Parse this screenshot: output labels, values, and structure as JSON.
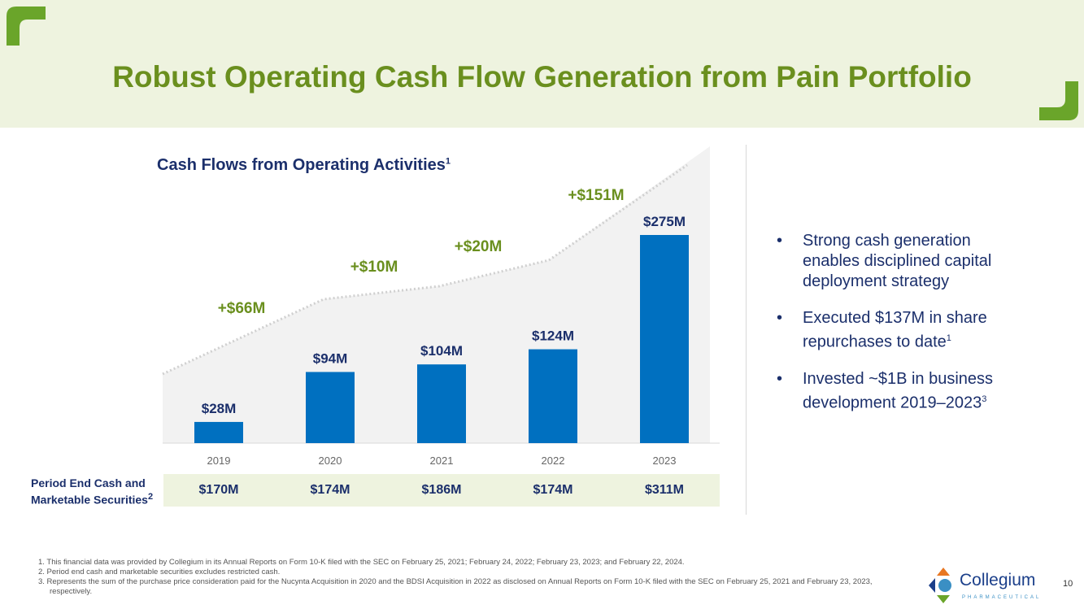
{
  "title": "Robust Operating Cash Flow Generation from Pain Portfolio",
  "colors": {
    "accent_green": "#6a8f1e",
    "bar_blue": "#0070c0",
    "navy": "#1b2f6b",
    "header_bg": "#eef3df"
  },
  "chart_data": {
    "type": "bar",
    "title": "Cash Flows from Operating Activities",
    "title_sup": "1",
    "categories": [
      "2019",
      "2020",
      "2021",
      "2022",
      "2023"
    ],
    "values": [
      28,
      94,
      104,
      124,
      275
    ],
    "value_labels": [
      "$28M",
      "$94M",
      "$104M",
      "$124M",
      "$275M"
    ],
    "unit": "$M",
    "increments": [
      "+$66M",
      "+$10M",
      "+$20M",
      "+$151M"
    ],
    "ylim": [
      0,
      275
    ],
    "grid": false
  },
  "cash_row": {
    "label": "Period End Cash and Marketable Securities",
    "label_sup": "2",
    "values": [
      "$170M",
      "$174M",
      "$186M",
      "$174M",
      "$311M"
    ]
  },
  "bullets": [
    {
      "text": "Strong cash generation enables disciplined capital deployment strategy",
      "sup": ""
    },
    {
      "text": "Executed $137M in share repurchases to date",
      "sup": "1"
    },
    {
      "text": "Invested ~$1B in business development 2019–2023",
      "sup": "3"
    }
  ],
  "footnotes": [
    "1. This financial data was provided by Collegium in its Annual Reports on Form 10-K filed with the SEC on February 25, 2021; February 24, 2022; February 23, 2023; and February 22, 2024.",
    "2. Period end cash and marketable securities excludes restricted cash.",
    "3. Represents the sum of the purchase price consideration paid for the Nucynta Acquisition in 2020 and the BDSI Acquisition in 2022 as disclosed on Annual Reports on Form 10-K filed with the SEC on February 25, 2021 and February 23, 2023, respectively."
  ],
  "logo": {
    "name": "Collegium",
    "sub": "PHARMACEUTICAL"
  },
  "page_number": "10"
}
